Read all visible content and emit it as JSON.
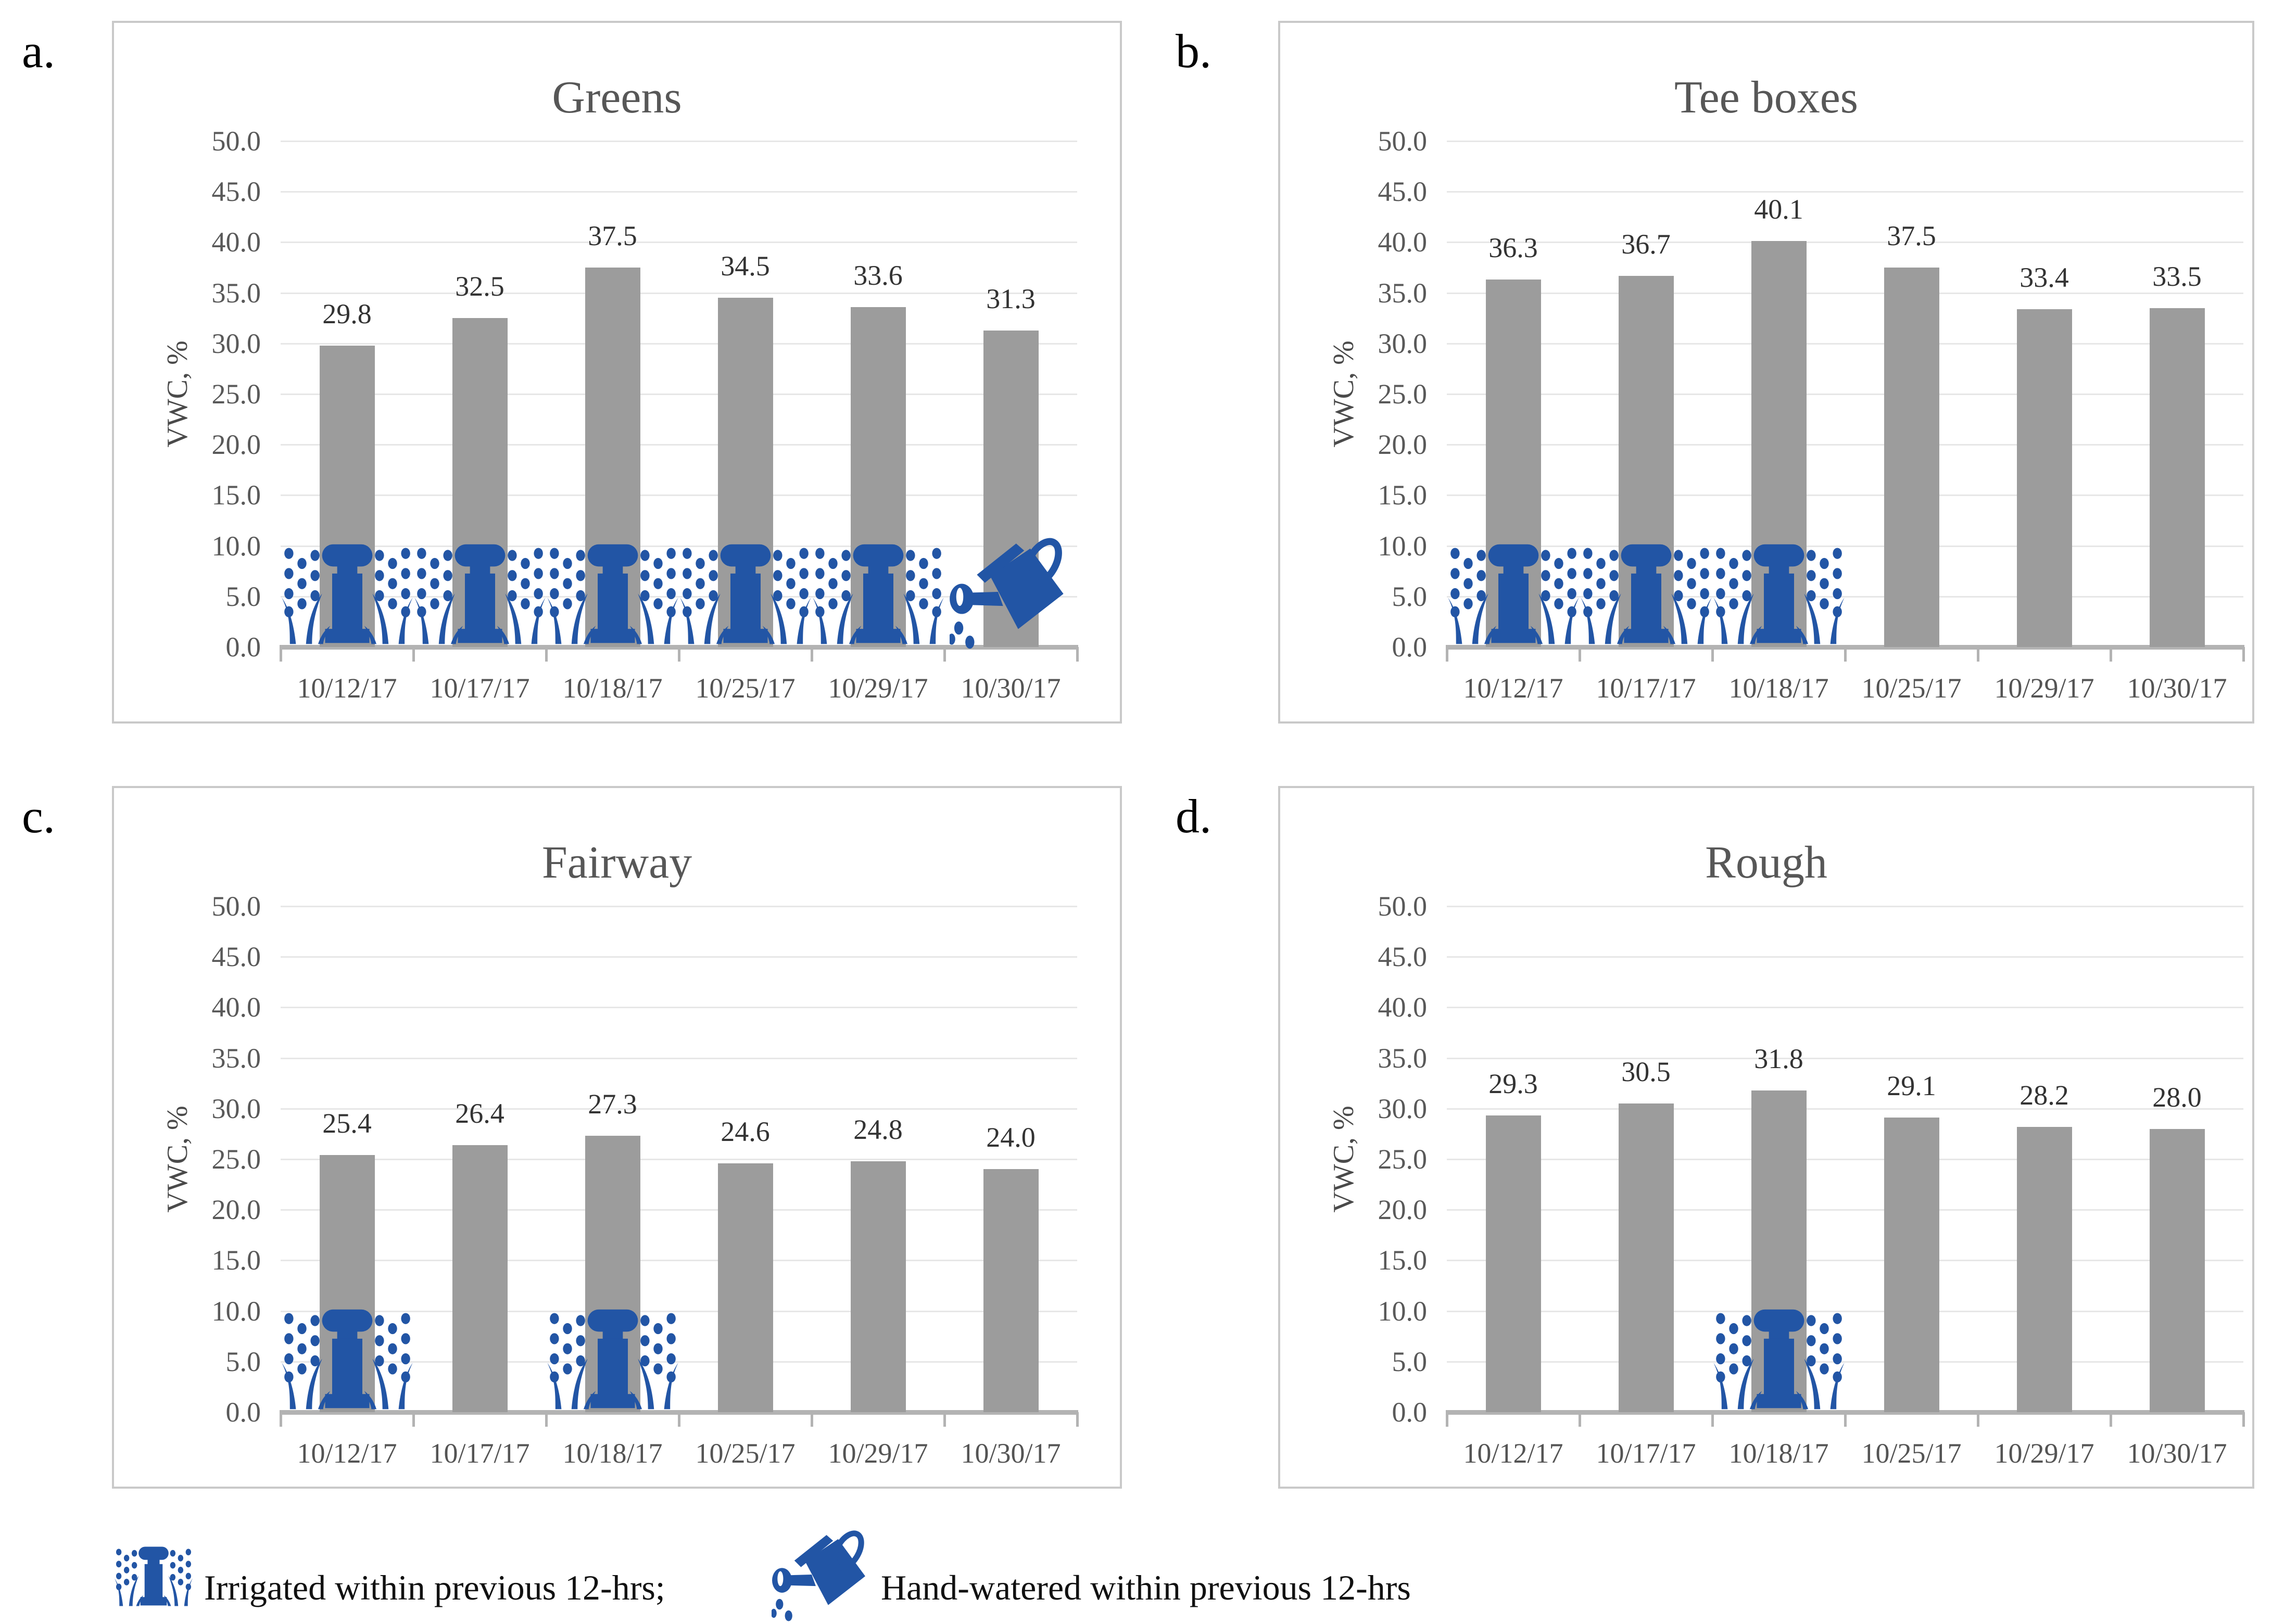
{
  "page": {
    "legend": {
      "irrigated_label": "Irrigated within previous 12-hrs;",
      "hand_watered_label": "Hand-watered within previous 12-hrs"
    },
    "colors": {
      "bar": "#9c9c9c",
      "icon_blue": "#2255a5",
      "gridline": "#e7e7e7",
      "axis": "#b3b3b3"
    }
  },
  "chart_data": [
    {
      "type": "bar",
      "panel_label": "a.",
      "title": "Greens",
      "xlabel": "",
      "ylabel": "VWC, %",
      "ylim": [
        0,
        50
      ],
      "ytick_step": 5,
      "grid": true,
      "legend_position": "none",
      "categories": [
        "10/12/17",
        "10/17/17",
        "10/18/17",
        "10/25/17",
        "10/29/17",
        "10/30/17"
      ],
      "values": [
        29.8,
        32.5,
        37.5,
        34.5,
        33.6,
        31.3
      ],
      "irrigated": [
        true,
        true,
        true,
        true,
        true,
        false
      ],
      "hand_watered": [
        false,
        false,
        false,
        false,
        false,
        true
      ]
    },
    {
      "type": "bar",
      "panel_label": "b.",
      "title": "Tee boxes",
      "xlabel": "",
      "ylabel": "VWC, %",
      "ylim": [
        0,
        50
      ],
      "ytick_step": 5,
      "grid": true,
      "legend_position": "none",
      "categories": [
        "10/12/17",
        "10/17/17",
        "10/18/17",
        "10/25/17",
        "10/29/17",
        "10/30/17"
      ],
      "values": [
        36.3,
        36.7,
        40.1,
        37.5,
        33.4,
        33.5
      ],
      "irrigated": [
        true,
        true,
        true,
        false,
        false,
        false
      ],
      "hand_watered": [
        false,
        false,
        false,
        false,
        false,
        false
      ]
    },
    {
      "type": "bar",
      "panel_label": "c.",
      "title": "Fairway",
      "xlabel": "",
      "ylabel": "VWC, %",
      "ylim": [
        0,
        50
      ],
      "ytick_step": 5,
      "grid": true,
      "legend_position": "none",
      "categories": [
        "10/12/17",
        "10/17/17",
        "10/18/17",
        "10/25/17",
        "10/29/17",
        "10/30/17"
      ],
      "values": [
        25.4,
        26.4,
        27.3,
        24.6,
        24.8,
        24.0
      ],
      "irrigated": [
        true,
        false,
        true,
        false,
        false,
        false
      ],
      "hand_watered": [
        false,
        false,
        false,
        false,
        false,
        false
      ]
    },
    {
      "type": "bar",
      "panel_label": "d.",
      "title": "Rough",
      "xlabel": "",
      "ylabel": "VWC, %",
      "ylim": [
        0,
        50
      ],
      "ytick_step": 5,
      "grid": true,
      "legend_position": "none",
      "categories": [
        "10/12/17",
        "10/17/17",
        "10/18/17",
        "10/25/17",
        "10/29/17",
        "10/30/17"
      ],
      "values": [
        29.3,
        30.5,
        31.8,
        29.1,
        28.2,
        28.0
      ],
      "irrigated": [
        false,
        false,
        true,
        false,
        false,
        false
      ],
      "hand_watered": [
        false,
        false,
        false,
        false,
        false,
        false
      ]
    }
  ]
}
